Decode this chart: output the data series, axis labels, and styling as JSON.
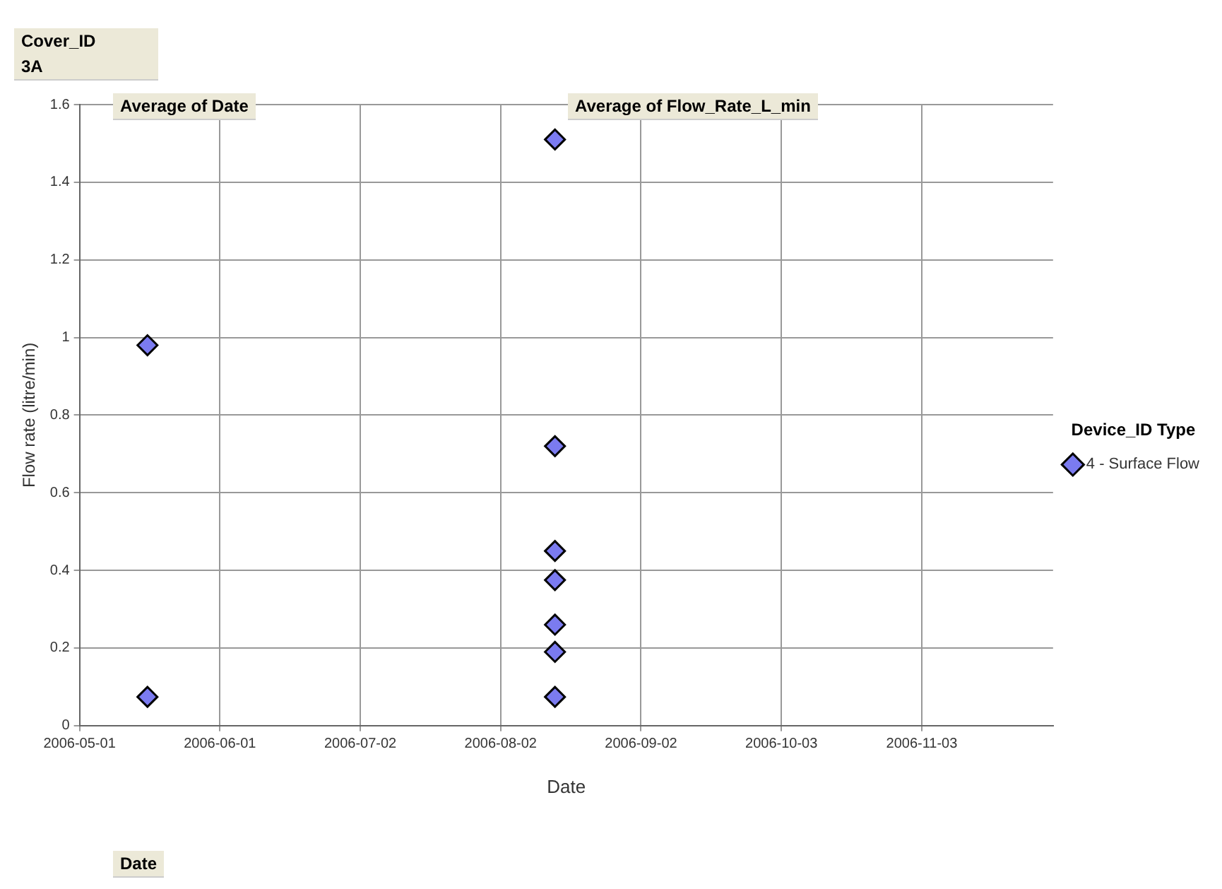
{
  "chart_data": {
    "type": "scatter",
    "xlabel": "Date",
    "ylabel": "Flow rate (litre/min)",
    "legend_title": "Device_ID Type",
    "annotations": [
      "Cover_ID",
      "3A",
      "Average of Date",
      "Average of Flow_Rate_L_min",
      "Date"
    ],
    "series": [
      {
        "name": "4 - Surface Flow",
        "color": "#7b7bf0",
        "x": [
          "2006-05-16",
          "2006-05-16",
          "2006-08-14",
          "2006-08-14",
          "2006-08-14",
          "2006-08-14",
          "2006-08-14",
          "2006-08-14",
          "2006-08-14"
        ],
        "values": [
          0.98,
          0.074,
          1.51,
          0.72,
          0.45,
          0.375,
          0.26,
          0.19,
          0.074
        ]
      }
    ],
    "xlim": [
      "2006-05-01",
      "2006-12-02"
    ],
    "xticks": [
      "2006-05-01",
      "2006-06-01",
      "2006-07-02",
      "2006-08-02",
      "2006-09-02",
      "2006-10-03",
      "2006-11-03"
    ],
    "ylim": [
      0,
      1.6
    ],
    "yticks": [
      0,
      0.2,
      0.4,
      0.6,
      0.8,
      1,
      1.2,
      1.4,
      1.6
    ],
    "grid": true,
    "legend": "right",
    "marker": "diamond"
  }
}
